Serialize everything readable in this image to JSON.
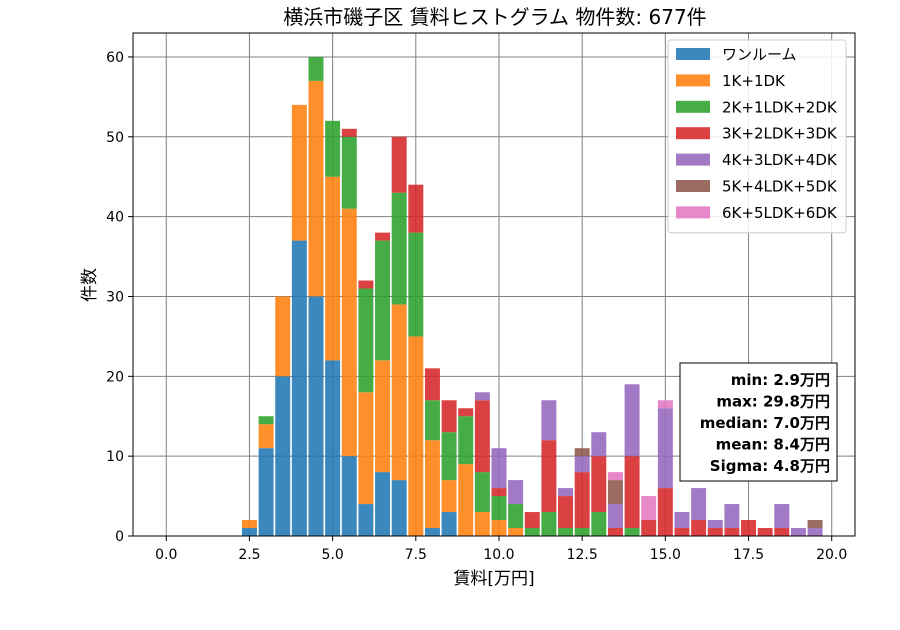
{
  "chart_data": {
    "type": "bar",
    "stacked": true,
    "title": "横浜市磯子区 賃料ヒストグラム  物件数: 677件",
    "xlabel": "賃料[万円]",
    "ylabel": "件数",
    "xlim": [
      -1.0,
      20.7
    ],
    "ylim": [
      0,
      63
    ],
    "xticks": [
      "0.0",
      "2.5",
      "5.0",
      "7.5",
      "10.0",
      "12.5",
      "15.0",
      "17.5",
      "20.0"
    ],
    "yticks": [
      "0",
      "10",
      "20",
      "30",
      "40",
      "50",
      "60"
    ],
    "grid": true,
    "legend_position": "top-right",
    "bin_width": 0.5,
    "x": [
      2.5,
      3.0,
      3.5,
      4.0,
      4.5,
      5.0,
      5.5,
      6.0,
      6.5,
      7.0,
      7.5,
      8.0,
      8.5,
      9.0,
      9.5,
      10.0,
      10.5,
      11.0,
      11.5,
      12.0,
      12.5,
      13.0,
      13.5,
      14.0,
      14.5,
      15.0,
      15.5,
      16.0,
      16.5,
      17.0,
      17.5,
      18.0,
      18.5,
      19.0,
      19.5
    ],
    "series": [
      {
        "name": "ワンルーム",
        "color": "#1f77b4",
        "values": [
          1,
          11,
          20,
          37,
          30,
          22,
          10,
          4,
          8,
          7,
          0,
          1,
          3,
          0,
          0,
          0,
          0,
          0,
          0,
          0,
          0,
          0,
          0,
          0,
          0,
          0,
          0,
          0,
          0,
          0,
          0,
          0,
          0,
          0,
          0
        ]
      },
      {
        "name": "1K+1DK",
        "color": "#ff7f0e",
        "values": [
          1,
          3,
          10,
          17,
          27,
          23,
          31,
          14,
          14,
          22,
          25,
          11,
          4,
          9,
          3,
          2,
          1,
          0,
          0,
          0,
          0,
          0,
          0,
          0,
          0,
          0,
          0,
          0,
          0,
          0,
          0,
          0,
          0,
          0,
          0
        ]
      },
      {
        "name": "2K+1LDK+2DK",
        "color": "#2ca02c",
        "values": [
          0,
          1,
          0,
          0,
          3,
          7,
          9,
          13,
          15,
          14,
          13,
          5,
          6,
          6,
          5,
          3,
          3,
          1,
          3,
          1,
          1,
          3,
          0,
          1,
          0,
          0,
          0,
          0,
          0,
          0,
          0,
          0,
          0,
          0,
          0
        ]
      },
      {
        "name": "3K+2LDK+3DK",
        "color": "#d62728",
        "values": [
          0,
          0,
          0,
          0,
          0,
          0,
          1,
          1,
          1,
          7,
          6,
          4,
          4,
          1,
          9,
          1,
          0,
          2,
          9,
          4,
          7,
          7,
          1,
          9,
          2,
          6,
          1,
          2,
          1,
          1,
          2,
          1,
          1,
          0,
          0
        ]
      },
      {
        "name": "4K+3LDK+4DK",
        "color": "#9467bd",
        "values": [
          0,
          0,
          0,
          0,
          0,
          0,
          0,
          0,
          0,
          0,
          0,
          0,
          0,
          0,
          1,
          5,
          3,
          0,
          5,
          1,
          2,
          3,
          3,
          9,
          0,
          10,
          2,
          4,
          1,
          3,
          0,
          0,
          3,
          1,
          1
        ]
      },
      {
        "name": "5K+4LDK+5DK",
        "color": "#8c564b",
        "values": [
          0,
          0,
          0,
          0,
          0,
          0,
          0,
          0,
          0,
          0,
          0,
          0,
          0,
          0,
          0,
          0,
          0,
          0,
          0,
          0,
          1,
          0,
          3,
          0,
          0,
          0,
          0,
          0,
          0,
          0,
          0,
          0,
          0,
          0,
          1
        ]
      },
      {
        "name": "6K+5LDK+6DK",
        "color": "#e377c2",
        "values": [
          0,
          0,
          0,
          0,
          0,
          0,
          0,
          0,
          0,
          0,
          0,
          0,
          0,
          0,
          0,
          0,
          0,
          0,
          0,
          0,
          0,
          0,
          1,
          0,
          3,
          1,
          0,
          0,
          0,
          0,
          0,
          0,
          0,
          0,
          0
        ]
      }
    ],
    "stats": [
      "min: 2.9万円",
      "max: 29.8万円",
      "median: 7.0万円",
      "mean: 8.4万円",
      "Sigma: 4.8万円"
    ]
  }
}
